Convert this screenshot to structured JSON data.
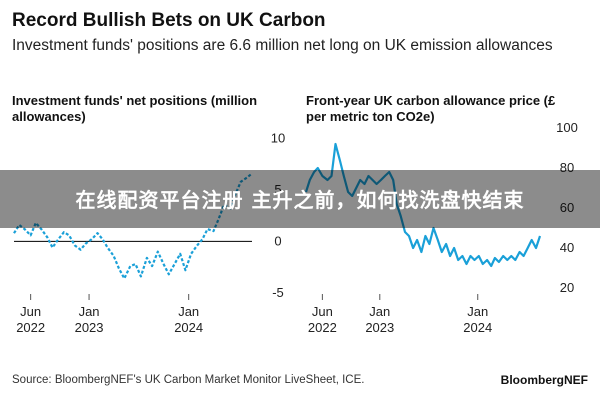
{
  "header": {
    "title": "Record Bullish Bets on UK Carbon",
    "subtitle": "Investment funds' positions are 6.6 million net long on UK emission allowances"
  },
  "overlay": {
    "banner_text": "在线配资平台注册 主升之前，如何找洗盘快结束"
  },
  "footer": {
    "source": "Source: BloombergNEF's UK Carbon Market Monitor LiveSheet, ICE.",
    "brand": "BloombergNEF"
  },
  "colors": {
    "series": "#1aa0d8",
    "zero_line": "#000000",
    "text": "#111111"
  },
  "chart_data": [
    {
      "type": "line",
      "title": "Investment funds' net positions (million allowances)",
      "x_ticks": [
        {
          "label": "Jun",
          "label2": "2022",
          "date": "2022-06-01"
        },
        {
          "label": "Jan",
          "label2": "2023",
          "date": "2023-01-01"
        },
        {
          "label": "Jan",
          "label2": "2024",
          "date": "2024-01-01"
        }
      ],
      "y_ticks": [
        10,
        5,
        0,
        -5
      ],
      "ylim": [
        -5.5,
        12
      ],
      "xlim": [
        "2022-04-01",
        "2024-08-20"
      ],
      "line_style": "dashed",
      "series": [
        {
          "points": [
            [
              "2022-04-01",
              0.8
            ],
            [
              "2022-04-20",
              1.6
            ],
            [
              "2022-05-10",
              1.2
            ],
            [
              "2022-06-01",
              0.6
            ],
            [
              "2022-06-20",
              1.8
            ],
            [
              "2022-07-10",
              1.2
            ],
            [
              "2022-08-01",
              0.4
            ],
            [
              "2022-08-20",
              -0.6
            ],
            [
              "2022-09-10",
              0.2
            ],
            [
              "2022-10-01",
              0.9
            ],
            [
              "2022-10-20",
              0.6
            ],
            [
              "2022-11-10",
              -0.4
            ],
            [
              "2022-12-01",
              -0.8
            ],
            [
              "2022-12-20",
              -0.2
            ],
            [
              "2023-01-10",
              0.2
            ],
            [
              "2023-02-01",
              0.8
            ],
            [
              "2023-02-20",
              0.2
            ],
            [
              "2023-03-10",
              -0.6
            ],
            [
              "2023-04-01",
              -1.4
            ],
            [
              "2023-04-20",
              -2.6
            ],
            [
              "2023-05-10",
              -3.6
            ],
            [
              "2023-06-01",
              -2.4
            ],
            [
              "2023-06-20",
              -2.2
            ],
            [
              "2023-07-10",
              -3.4
            ],
            [
              "2023-08-01",
              -1.6
            ],
            [
              "2023-08-20",
              -2.4
            ],
            [
              "2023-09-10",
              -1.0
            ],
            [
              "2023-10-01",
              -2.2
            ],
            [
              "2023-10-20",
              -3.2
            ],
            [
              "2023-11-10",
              -2.2
            ],
            [
              "2023-12-01",
              -1.2
            ],
            [
              "2023-12-20",
              -2.8
            ],
            [
              "2024-01-10",
              -1.2
            ],
            [
              "2024-02-01",
              -0.4
            ],
            [
              "2024-02-20",
              0.2
            ],
            [
              "2024-03-10",
              1.2
            ],
            [
              "2024-04-01",
              1.0
            ],
            [
              "2024-04-20",
              2.2
            ],
            [
              "2024-05-10",
              3.6
            ],
            [
              "2024-06-01",
              3.2
            ],
            [
              "2024-06-20",
              4.6
            ],
            [
              "2024-07-10",
              5.8
            ],
            [
              "2024-08-01",
              6.2
            ],
            [
              "2024-08-20",
              6.6
            ]
          ]
        }
      ]
    },
    {
      "type": "line",
      "title": "Front-year UK carbon allowance price (£ per metric ton CO2e)",
      "x_ticks": [
        {
          "label": "Jun",
          "label2": "2022",
          "date": "2022-06-01"
        },
        {
          "label": "Jan",
          "label2": "2023",
          "date": "2023-01-01"
        },
        {
          "label": "Jan",
          "label2": "2024",
          "date": "2024-01-01"
        }
      ],
      "y_ticks": [
        100,
        80,
        60,
        40,
        20
      ],
      "ylim": [
        15,
        105
      ],
      "xlim": [
        "2022-04-01",
        "2024-08-20"
      ],
      "line_style": "solid",
      "series": [
        {
          "points": [
            [
              "2022-04-01",
              68
            ],
            [
              "2022-04-15",
              74
            ],
            [
              "2022-05-01",
              78
            ],
            [
              "2022-05-15",
              80
            ],
            [
              "2022-06-01",
              76
            ],
            [
              "2022-06-20",
              74
            ],
            [
              "2022-07-05",
              76
            ],
            [
              "2022-07-20",
              92
            ],
            [
              "2022-08-05",
              84
            ],
            [
              "2022-08-20",
              76
            ],
            [
              "2022-09-05",
              68
            ],
            [
              "2022-09-20",
              66
            ],
            [
              "2022-10-05",
              70
            ],
            [
              "2022-10-20",
              74
            ],
            [
              "2022-11-05",
              72
            ],
            [
              "2022-11-20",
              76
            ],
            [
              "2022-12-05",
              74
            ],
            [
              "2022-12-20",
              72
            ],
            [
              "2023-01-05",
              74
            ],
            [
              "2023-01-20",
              76
            ],
            [
              "2023-02-05",
              78
            ],
            [
              "2023-02-20",
              74
            ],
            [
              "2023-03-05",
              62
            ],
            [
              "2023-03-20",
              56
            ],
            [
              "2023-04-05",
              48
            ],
            [
              "2023-04-20",
              46
            ],
            [
              "2023-05-05",
              40
            ],
            [
              "2023-05-20",
              44
            ],
            [
              "2023-06-05",
              38
            ],
            [
              "2023-06-20",
              46
            ],
            [
              "2023-07-05",
              42
            ],
            [
              "2023-07-20",
              50
            ],
            [
              "2023-08-05",
              44
            ],
            [
              "2023-08-20",
              38
            ],
            [
              "2023-09-05",
              42
            ],
            [
              "2023-09-20",
              36
            ],
            [
              "2023-10-05",
              40
            ],
            [
              "2023-10-20",
              34
            ],
            [
              "2023-11-05",
              36
            ],
            [
              "2023-11-20",
              32
            ],
            [
              "2023-12-05",
              36
            ],
            [
              "2023-12-20",
              34
            ],
            [
              "2024-01-05",
              36
            ],
            [
              "2024-01-20",
              32
            ],
            [
              "2024-02-05",
              34
            ],
            [
              "2024-02-20",
              31
            ],
            [
              "2024-03-05",
              35
            ],
            [
              "2024-03-20",
              33
            ],
            [
              "2024-04-05",
              36
            ],
            [
              "2024-04-20",
              34
            ],
            [
              "2024-05-05",
              36
            ],
            [
              "2024-05-20",
              34
            ],
            [
              "2024-06-05",
              38
            ],
            [
              "2024-06-20",
              36
            ],
            [
              "2024-07-05",
              40
            ],
            [
              "2024-07-20",
              44
            ],
            [
              "2024-08-05",
              40
            ],
            [
              "2024-08-20",
              46
            ]
          ]
        }
      ]
    }
  ]
}
